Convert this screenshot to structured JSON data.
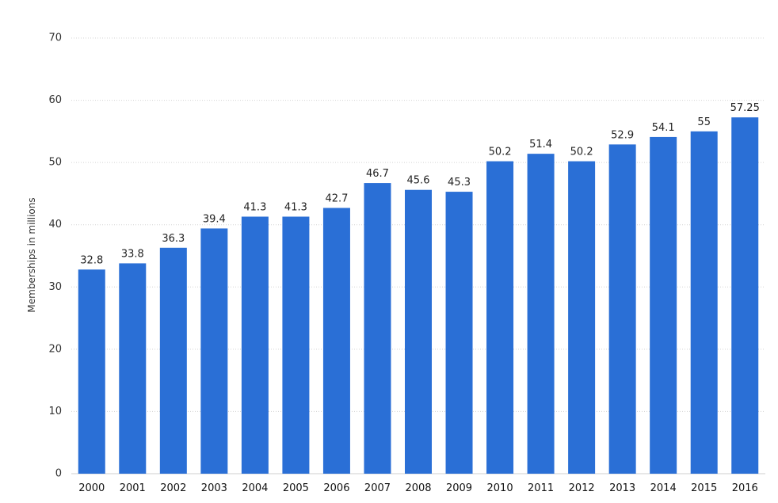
{
  "chart_data": {
    "type": "bar",
    "categories": [
      "2000",
      "2001",
      "2002",
      "2003",
      "2004",
      "2005",
      "2006",
      "2007",
      "2008",
      "2009",
      "2010",
      "2011",
      "2012",
      "2013",
      "2014",
      "2015",
      "2016"
    ],
    "values": [
      32.8,
      33.8,
      36.3,
      39.4,
      41.3,
      41.3,
      42.7,
      46.7,
      45.6,
      45.3,
      50.2,
      51.4,
      50.2,
      52.9,
      54.1,
      55,
      57.25
    ],
    "data_labels": [
      "32.8",
      "33.8",
      "36.3",
      "39.4",
      "41.3",
      "41.3",
      "42.7",
      "46.7",
      "45.6",
      "45.3",
      "50.2",
      "51.4",
      "50.2",
      "52.9",
      "54.1",
      "55",
      "57.25"
    ],
    "title": "",
    "xlabel": "",
    "ylabel": "Memberships in millions",
    "ylim": [
      0,
      70
    ],
    "yticks": [
      "0",
      "10",
      "20",
      "30",
      "40",
      "50",
      "60",
      "70"
    ],
    "grid": true,
    "legend": "none",
    "bar_color": "#2a6fd6"
  }
}
